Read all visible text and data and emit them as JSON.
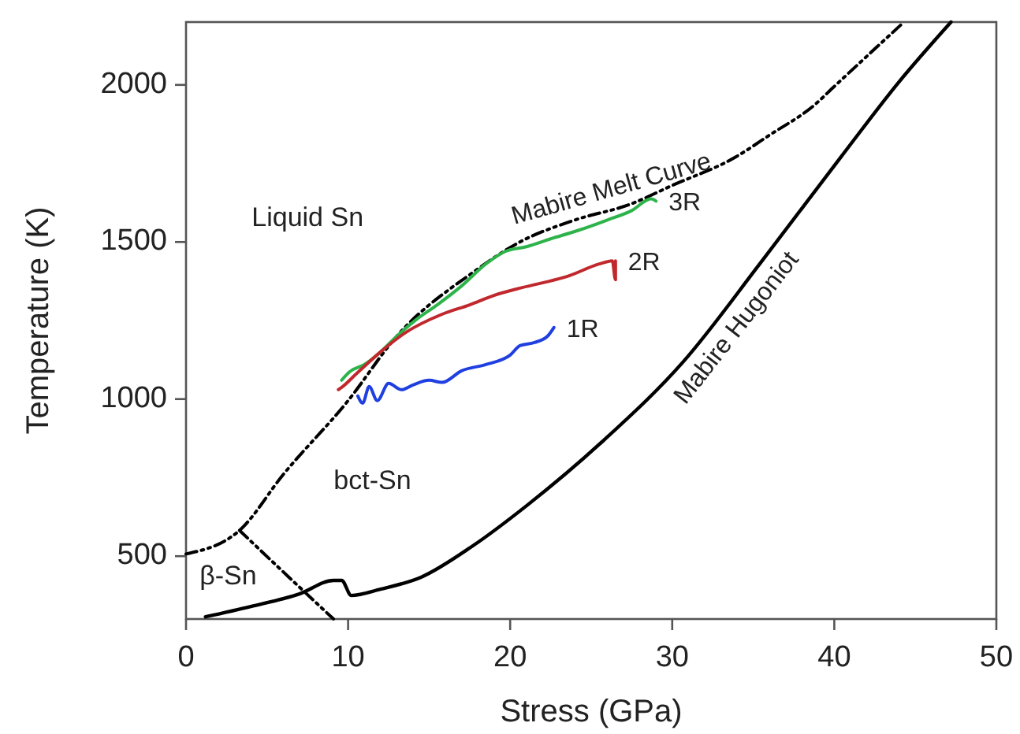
{
  "chart_data": {
    "type": "line",
    "xlabel": "Stress (GPa)",
    "ylabel": "Temperature (K)",
    "xlim": [
      0,
      50
    ],
    "ylim": [
      300,
      2200
    ],
    "xticks": [
      0,
      10,
      20,
      30,
      40,
      50
    ],
    "yticks": [
      500,
      1000,
      1500,
      2000
    ],
    "grid": false,
    "marker": "none",
    "series": [
      {
        "name": "Mabire Melt Curve",
        "color": "#000000",
        "line_style": "dashed",
        "x": [
          0,
          3.3,
          6,
          10,
          13,
          17.7,
          20.6,
          24,
          27.4,
          30,
          33.9,
          36,
          38.8,
          40,
          44.3
        ],
        "values": [
          507,
          582,
          760,
          995,
          1200,
          1403,
          1500,
          1570,
          1620,
          1680,
          1770,
          1840,
          1937,
          1995,
          2200
        ]
      },
      {
        "color": "#000000",
        "line_style": "dashed",
        "x": [
          3.3,
          6,
          9.1
        ],
        "values": [
          582,
          450,
          300
        ]
      },
      {
        "name": "Mabire Hugoniot",
        "color": "#000000",
        "line_style": "solid",
        "x": [
          1.2,
          4,
          7,
          9.1,
          9.6,
          10.2,
          12,
          14.5,
          17.7,
          21,
          25.8,
          30.7,
          35.5,
          40.4,
          44,
          47.2
        ],
        "values": [
          307,
          340,
          380,
          423,
          423,
          375,
          395,
          433,
          533,
          660,
          870,
          1120,
          1437,
          1770,
          2010,
          2200
        ]
      },
      {
        "name": "3R",
        "color": "#2db34a",
        "line_style": "solid",
        "x": [
          9.6,
          10.1,
          11,
          12,
          13,
          14.2,
          15.5,
          17,
          18.5,
          19.7,
          21,
          22.5,
          24.2,
          26,
          27.5,
          28.7,
          29
        ],
        "values": [
          1060,
          1087,
          1110,
          1150,
          1200,
          1253,
          1300,
          1360,
          1430,
          1470,
          1485,
          1510,
          1537,
          1570,
          1600,
          1637,
          1630
        ]
      },
      {
        "name": "2R",
        "color": "#c0282d",
        "line_style": "solid",
        "x": [
          9.4,
          9.6,
          10.5,
          12,
          13.5,
          15.8,
          17.5,
          19,
          20.6,
          22,
          23.5,
          25.5,
          26.3,
          26.5,
          26.5
        ],
        "values": [
          1030,
          1037,
          1080,
          1150,
          1210,
          1270,
          1300,
          1330,
          1353,
          1370,
          1390,
          1430,
          1440,
          1380,
          1440
        ]
      },
      {
        "name": "1R",
        "color": "#1f3fe0",
        "line_style": "solid",
        "x": [
          10.6,
          10.9,
          11.3,
          11.8,
          12.5,
          13.3,
          14,
          15,
          15.8,
          17,
          18.5,
          20,
          20.6,
          21.5,
          22.3,
          22.7
        ],
        "values": [
          1010,
          987,
          1040,
          995,
          1050,
          1030,
          1045,
          1060,
          1053,
          1090,
          1110,
          1140,
          1170,
          1180,
          1200,
          1228
        ]
      }
    ],
    "annotations": [
      "Liquid Sn",
      "bct-Sn",
      "β-Sn"
    ]
  }
}
